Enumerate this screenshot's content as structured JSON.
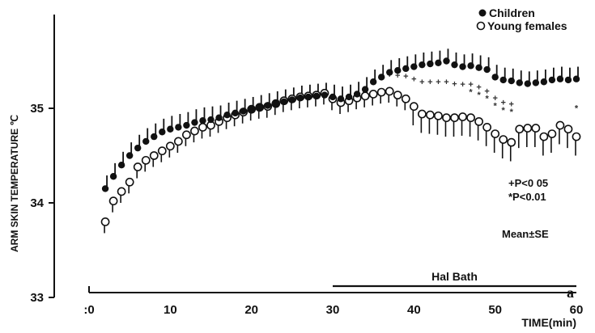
{
  "chart_data": {
    "type": "scatter",
    "ylabel": "ARM SKIN TEMPERATURE  ℃",
    "xlabel": "TIME(min)",
    "xlim": [
      0,
      60
    ],
    "ylim": [
      33,
      36
    ],
    "x_ticks": [
      0,
      10,
      20,
      30,
      40,
      50,
      60
    ],
    "x_tick_labels": [
      ":0",
      "10",
      "20",
      "30",
      "40",
      "50",
      "60"
    ],
    "y_ticks": [
      33,
      34,
      35
    ],
    "y_tick_labels": [
      "33",
      "34",
      "35"
    ],
    "grid": false,
    "legend": {
      "placement": "top-right",
      "entries": [
        {
          "name": "Children",
          "marker": "filled-circle"
        },
        {
          "name": "Young females",
          "marker": "open-circle"
        }
      ]
    },
    "series": [
      {
        "name": "Children",
        "marker": "filled",
        "x": [
          2,
          3,
          4,
          5,
          6,
          7,
          8,
          9,
          10,
          11,
          12,
          13,
          14,
          15,
          16,
          17,
          18,
          19,
          20,
          21,
          22,
          23,
          24,
          25,
          26,
          27,
          28,
          29,
          30,
          31,
          32,
          33,
          34,
          35,
          36,
          37,
          38,
          39,
          40,
          41,
          42,
          43,
          44,
          45,
          46,
          47,
          48,
          49,
          50,
          51,
          52,
          53,
          54,
          55,
          56,
          57,
          58,
          59,
          60
        ],
        "y": [
          34.15,
          34.28,
          34.4,
          34.5,
          34.58,
          34.65,
          34.7,
          34.75,
          34.78,
          34.8,
          34.82,
          34.85,
          34.87,
          34.88,
          34.9,
          34.93,
          34.95,
          34.97,
          34.99,
          35.01,
          35.03,
          35.05,
          35.07,
          35.09,
          35.11,
          35.12,
          35.13,
          35.14,
          35.12,
          35.1,
          35.12,
          35.15,
          35.2,
          35.28,
          35.33,
          35.38,
          35.4,
          35.42,
          35.44,
          35.46,
          35.47,
          35.48,
          35.5,
          35.46,
          35.44,
          35.45,
          35.43,
          35.41,
          35.33,
          35.3,
          35.29,
          35.27,
          35.26,
          35.27,
          35.28,
          35.3,
          35.31,
          35.3,
          35.31
        ],
        "se": [
          0.14,
          0.14,
          0.14,
          0.14,
          0.14,
          0.14,
          0.14,
          0.14,
          0.14,
          0.14,
          0.14,
          0.14,
          0.14,
          0.14,
          0.13,
          0.13,
          0.13,
          0.13,
          0.13,
          0.13,
          0.13,
          0.13,
          0.13,
          0.13,
          0.13,
          0.13,
          0.13,
          0.13,
          0.13,
          0.13,
          0.13,
          0.13,
          0.13,
          0.13,
          0.13,
          0.13,
          0.13,
          0.13,
          0.13,
          0.13,
          0.13,
          0.13,
          0.13,
          0.13,
          0.13,
          0.13,
          0.13,
          0.13,
          0.13,
          0.13,
          0.13,
          0.13,
          0.13,
          0.13,
          0.13,
          0.13,
          0.13,
          0.13,
          0.13
        ]
      },
      {
        "name": "Young females",
        "marker": "open",
        "x": [
          2,
          3,
          4,
          5,
          6,
          7,
          8,
          9,
          10,
          11,
          12,
          13,
          14,
          15,
          16,
          17,
          18,
          19,
          20,
          21,
          22,
          23,
          24,
          25,
          26,
          27,
          28,
          29,
          30,
          31,
          32,
          33,
          34,
          35,
          36,
          37,
          38,
          39,
          40,
          41,
          42,
          43,
          44,
          45,
          46,
          47,
          48,
          49,
          50,
          51,
          52,
          53,
          54,
          55,
          56,
          57,
          58,
          59,
          60
        ],
        "y": [
          33.8,
          34.02,
          34.12,
          34.22,
          34.38,
          34.45,
          34.5,
          34.55,
          34.6,
          34.65,
          34.72,
          34.76,
          34.8,
          34.82,
          34.86,
          34.9,
          34.93,
          34.96,
          34.99,
          35.01,
          35.02,
          35.05,
          35.08,
          35.1,
          35.12,
          35.13,
          35.14,
          35.16,
          35.1,
          35.06,
          35.08,
          35.11,
          35.13,
          35.15,
          35.17,
          35.18,
          35.14,
          35.1,
          35.02,
          34.94,
          34.93,
          34.92,
          34.9,
          34.9,
          34.91,
          34.9,
          34.86,
          34.8,
          34.73,
          34.67,
          34.64,
          34.78,
          34.79,
          34.79,
          34.7,
          34.73,
          34.82,
          34.78,
          34.7
        ]
      }
    ],
    "annotations": [
      {
        "text": "Hal Bath",
        "type": "bar",
        "x_start": 30,
        "x_end": 60
      },
      {
        "text": "a",
        "type": "panel-label"
      },
      {
        "text": "+P<0 05",
        "type": "significance"
      },
      {
        "text": "*P<0.01",
        "type": "significance"
      },
      {
        "text": "Mean±SE",
        "type": "note"
      }
    ],
    "significance_marks": [
      {
        "x": [
          36,
          37,
          38,
          39,
          40,
          41,
          42,
          43,
          44,
          45,
          46,
          47,
          48,
          49,
          50,
          51,
          52
        ],
        "symbol": "+",
        "y_offset_data": 0.08
      },
      {
        "x": [
          47,
          48,
          49,
          50,
          51,
          52,
          60
        ],
        "symbol": "*",
        "y_offset_data": 0.0
      }
    ]
  },
  "colors": {
    "ink": "#111111",
    "background": "#ffffff"
  }
}
